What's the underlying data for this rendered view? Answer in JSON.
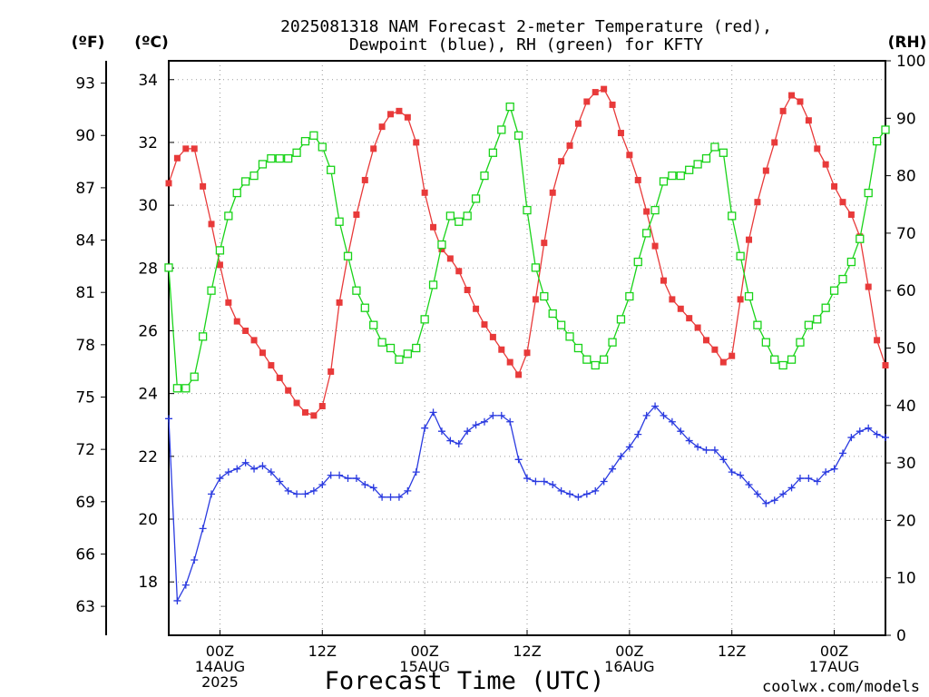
{
  "title_line1": "2025081318 NAM Forecast 2-meter Temperature (red),",
  "title_line2": "Dewpoint (blue), RH (green) for KFTY",
  "left_unit_f": "(ºF)",
  "left_unit_c": "(ºC)",
  "right_unit": "(RH)",
  "xlabel": "Forecast Time (UTC)",
  "credit": "coolwx.com/models",
  "colors": {
    "temperature": "#e83a3a",
    "dewpoint": "#2a3ae0",
    "rh": "#19d319",
    "credit": "#e83a3a"
  },
  "chart_data": {
    "type": "line",
    "x_units": "forecast hours from 2025081318 (3-hourly 2025-08-13 18Z .. 2025-08-17 06Z; plotted at 1-hour steps)",
    "xlim": [
      0,
      84
    ],
    "x_ticks": [
      {
        "hour": 6,
        "lines": [
          "00Z",
          "14AUG",
          "2025"
        ]
      },
      {
        "hour": 18,
        "lines": [
          "12Z"
        ]
      },
      {
        "hour": 30,
        "lines": [
          "00Z",
          "15AUG"
        ]
      },
      {
        "hour": 42,
        "lines": [
          "12Z"
        ]
      },
      {
        "hour": 54,
        "lines": [
          "00Z",
          "16AUG"
        ]
      },
      {
        "hour": 66,
        "lines": [
          "12Z"
        ]
      },
      {
        "hour": 78,
        "lines": [
          "00Z",
          "17AUG"
        ]
      }
    ],
    "y_celsius": {
      "lim": [
        16.3,
        34.6
      ],
      "ticks": [
        18,
        20,
        22,
        24,
        26,
        28,
        30,
        32,
        34
      ]
    },
    "y_fahrenheit": {
      "ticks": [
        63,
        66,
        69,
        72,
        75,
        78,
        81,
        84,
        87,
        90,
        93
      ]
    },
    "y_rh": {
      "lim": [
        0,
        100
      ],
      "ticks": [
        0,
        10,
        20,
        30,
        40,
        50,
        60,
        70,
        80,
        90,
        100
      ]
    },
    "grid": true,
    "series": [
      {
        "name": "2-meter Temperature",
        "axis": "celsius",
        "marker": "filled-square",
        "values": [
          30.7,
          31.5,
          31.8,
          31.8,
          30.6,
          29.4,
          28.1,
          26.9,
          26.3,
          26.0,
          25.7,
          25.3,
          24.9,
          24.5,
          24.1,
          23.7,
          23.4,
          23.3,
          23.6,
          24.7,
          26.9,
          28.4,
          29.7,
          30.8,
          31.8,
          32.5,
          32.9,
          33.0,
          32.8,
          32.0,
          30.4,
          29.3,
          28.6,
          28.3,
          27.9,
          27.3,
          26.7,
          26.2,
          25.8,
          25.4,
          25.0,
          24.6,
          25.3,
          27.0,
          28.8,
          30.4,
          31.4,
          31.9,
          32.6,
          33.3,
          33.6,
          33.7,
          33.2,
          32.3,
          31.6,
          30.8,
          29.8,
          28.7,
          27.6,
          27.0,
          26.7,
          26.4,
          26.1,
          25.7,
          25.4,
          25.0,
          25.2,
          27.0,
          28.9,
          30.1,
          31.1,
          32.0,
          33.0,
          33.5,
          33.3,
          32.7,
          31.8,
          31.3,
          30.6,
          30.1,
          29.7,
          29.0,
          27.4,
          25.7,
          24.9
        ]
      },
      {
        "name": "Dewpoint",
        "axis": "celsius",
        "marker": "plus",
        "values": [
          23.2,
          17.4,
          17.9,
          18.7,
          19.7,
          20.8,
          21.3,
          21.5,
          21.6,
          21.8,
          21.6,
          21.7,
          21.5,
          21.2,
          20.9,
          20.8,
          20.8,
          20.9,
          21.1,
          21.4,
          21.4,
          21.3,
          21.3,
          21.1,
          21.0,
          20.7,
          20.7,
          20.7,
          20.9,
          21.5,
          22.9,
          23.4,
          22.8,
          22.5,
          22.4,
          22.8,
          23.0,
          23.1,
          23.3,
          23.3,
          23.1,
          21.9,
          21.3,
          21.2,
          21.2,
          21.1,
          20.9,
          20.8,
          20.7,
          20.8,
          20.9,
          21.2,
          21.6,
          22.0,
          22.3,
          22.7,
          23.3,
          23.6,
          23.3,
          23.1,
          22.8,
          22.5,
          22.3,
          22.2,
          22.2,
          21.9,
          21.5,
          21.4,
          21.1,
          20.8,
          20.5,
          20.6,
          20.8,
          21.0,
          21.3,
          21.3,
          21.2,
          21.5,
          21.6,
          22.1,
          22.6,
          22.8,
          22.9,
          22.7,
          22.6
        ]
      },
      {
        "name": "RH",
        "axis": "rh",
        "marker": "open-square",
        "values": [
          64,
          43,
          43,
          45,
          52,
          60,
          67,
          73,
          77,
          79,
          80,
          82,
          83,
          83,
          83,
          84,
          86,
          87,
          85,
          81,
          72,
          66,
          60,
          57,
          54,
          51,
          50,
          48,
          49,
          50,
          55,
          61,
          68,
          73,
          72,
          73,
          76,
          80,
          84,
          88,
          92,
          87,
          74,
          64,
          59,
          56,
          54,
          52,
          50,
          48,
          47,
          48,
          51,
          55,
          59,
          65,
          70,
          74,
          79,
          80,
          80,
          81,
          82,
          83,
          85,
          84,
          73,
          66,
          59,
          54,
          51,
          48,
          47,
          48,
          51,
          54,
          55,
          57,
          60,
          62,
          65,
          69,
          77,
          86,
          88
        ]
      }
    ]
  }
}
